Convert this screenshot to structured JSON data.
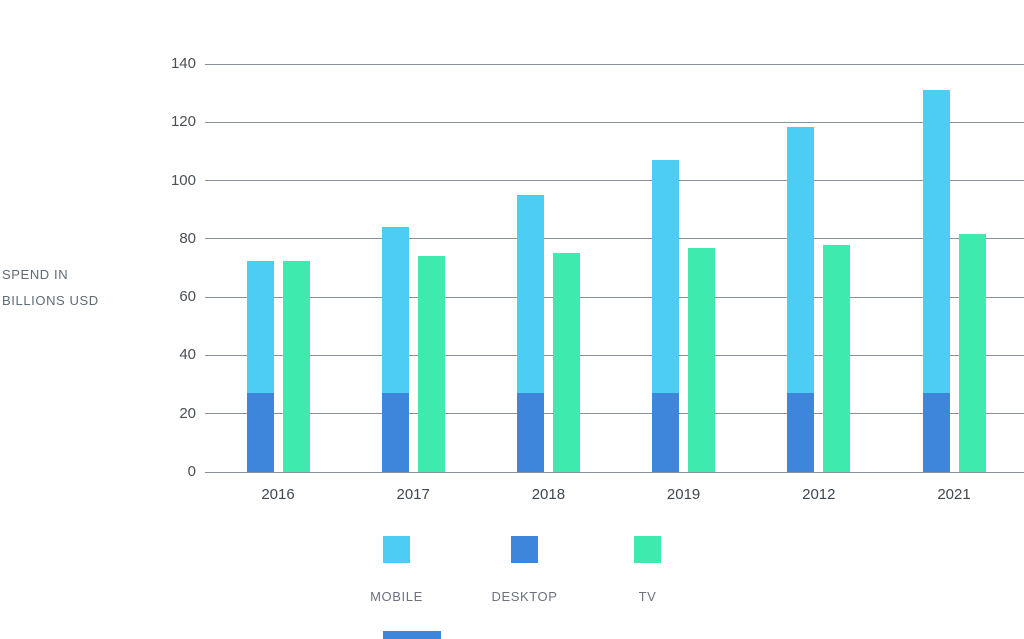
{
  "chart_data": {
    "type": "bar",
    "title": "",
    "ylabel": "SPEND IN BILLIONS USD",
    "ylabel_lines": [
      "SPEND IN",
      "BILLIONS USD"
    ],
    "categories": [
      "2016",
      "2017",
      "2018",
      "2019",
      "2012",
      "2021"
    ],
    "series": [
      {
        "name": "MOBILE",
        "role": "stacked-top",
        "color": "#4ccdf4",
        "values": [
          45.5,
          57,
          68,
          80,
          91.5,
          104
        ]
      },
      {
        "name": "DESKTOP",
        "role": "stacked-bottom",
        "color": "#3e86dc",
        "values": [
          27,
          27,
          27,
          27,
          27,
          27
        ]
      },
      {
        "name": "TV",
        "role": "separate-bar",
        "color": "#3eeaad",
        "values": [
          72.5,
          74,
          75,
          77,
          78,
          81.5
        ]
      }
    ],
    "stacked_totals": [
      72.5,
      84,
      95,
      107,
      118.5,
      131
    ],
    "ylim": [
      0,
      140
    ],
    "yticks": [
      0,
      20,
      40,
      60,
      80,
      100,
      120,
      140
    ],
    "grid": true,
    "legend": [
      "MOBILE",
      "DESKTOP",
      "TV"
    ],
    "legend_position": "bottom"
  },
  "colors": {
    "mobile": "#4ccdf4",
    "desktop": "#3e86dc",
    "tv": "#3eeaad",
    "gridline": "#8b9198",
    "tick_text": "#4a5056",
    "category_text": "#3f4750",
    "legend_text": "#6b7280",
    "axis_title_text": "#5f6b76",
    "background": "#ffffff"
  }
}
